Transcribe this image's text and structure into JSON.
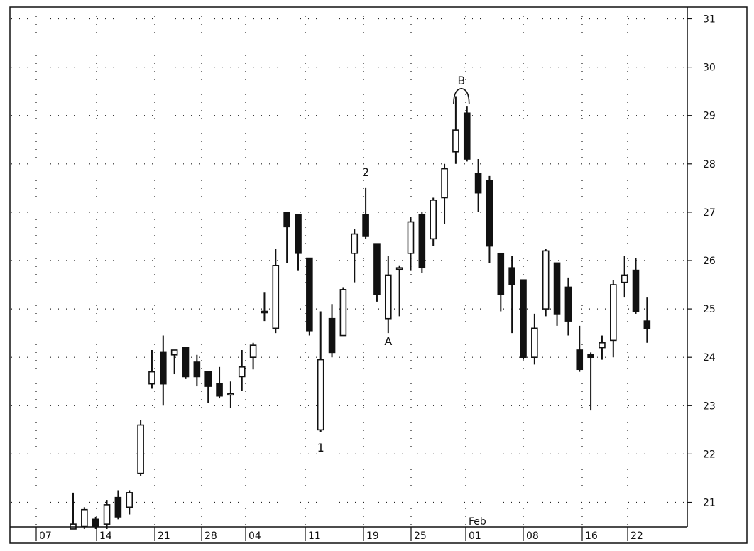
{
  "chart_data": {
    "type": "candlestick",
    "title": "",
    "xlabel": "",
    "ylabel": "",
    "ylim": [
      20.5,
      31
    ],
    "y_ticks": [
      21,
      22,
      23,
      24,
      25,
      26,
      27,
      28,
      29,
      30,
      31
    ],
    "y_axis_position": "right",
    "grid": true,
    "x_tick_labels": [
      "07",
      "14",
      "21",
      "28",
      "04",
      "11",
      "19",
      "25",
      "01",
      "08",
      "16",
      "22"
    ],
    "x_month_label": "Feb",
    "candles": [
      {
        "o": 20.45,
        "h": 21.2,
        "l": 20.45,
        "c": 20.55
      },
      {
        "o": 20.5,
        "h": 20.9,
        "l": 20.45,
        "c": 20.85
      },
      {
        "o": 20.65,
        "h": 20.7,
        "l": 20.45,
        "c": 20.5
      },
      {
        "o": 20.55,
        "h": 21.05,
        "l": 20.45,
        "c": 20.95
      },
      {
        "o": 21.1,
        "h": 21.25,
        "l": 20.65,
        "c": 20.7
      },
      {
        "o": 20.9,
        "h": 21.25,
        "l": 20.75,
        "c": 21.2
      },
      {
        "o": 21.6,
        "h": 22.7,
        "l": 21.55,
        "c": 22.6
      },
      {
        "o": 23.45,
        "h": 24.15,
        "l": 23.35,
        "c": 23.7
      },
      {
        "o": 24.1,
        "h": 24.45,
        "l": 23.0,
        "c": 23.45
      },
      {
        "o": 24.05,
        "h": 24.15,
        "l": 23.65,
        "c": 24.15
      },
      {
        "o": 24.2,
        "h": 24.2,
        "l": 23.55,
        "c": 23.6
      },
      {
        "o": 23.9,
        "h": 24.05,
        "l": 23.4,
        "c": 23.6
      },
      {
        "o": 23.7,
        "h": 23.7,
        "l": 23.05,
        "c": 23.4
      },
      {
        "o": 23.45,
        "h": 23.8,
        "l": 23.15,
        "c": 23.2
      },
      {
        "o": 23.25,
        "h": 23.5,
        "l": 22.95,
        "c": 23.25
      },
      {
        "o": 23.6,
        "h": 24.15,
        "l": 23.3,
        "c": 23.8
      },
      {
        "o": 24.0,
        "h": 24.3,
        "l": 23.75,
        "c": 24.25
      },
      {
        "o": 24.95,
        "h": 25.35,
        "l": 24.75,
        "c": 24.95
      },
      {
        "o": 24.6,
        "h": 26.25,
        "l": 24.5,
        "c": 25.9
      },
      {
        "o": 27.0,
        "h": 27.0,
        "l": 25.95,
        "c": 26.7
      },
      {
        "o": 26.95,
        "h": 26.95,
        "l": 25.8,
        "c": 26.15
      },
      {
        "o": 26.05,
        "h": 26.05,
        "l": 24.45,
        "c": 24.55
      },
      {
        "o": 22.5,
        "h": 24.95,
        "l": 22.45,
        "c": 23.95
      },
      {
        "o": 24.8,
        "h": 25.1,
        "l": 24.0,
        "c": 24.1
      },
      {
        "o": 24.45,
        "h": 25.45,
        "l": 24.45,
        "c": 25.4
      },
      {
        "o": 26.15,
        "h": 26.65,
        "l": 25.55,
        "c": 26.55
      },
      {
        "o": 26.95,
        "h": 27.5,
        "l": 26.45,
        "c": 26.5
      },
      {
        "o": 26.35,
        "h": 26.35,
        "l": 25.15,
        "c": 25.3
      },
      {
        "o": 24.8,
        "h": 26.1,
        "l": 24.5,
        "c": 25.7
      },
      {
        "o": 25.85,
        "h": 25.9,
        "l": 24.85,
        "c": 25.85
      },
      {
        "o": 26.15,
        "h": 26.9,
        "l": 25.8,
        "c": 26.8
      },
      {
        "o": 26.95,
        "h": 27.0,
        "l": 25.75,
        "c": 25.85
      },
      {
        "o": 26.45,
        "h": 27.3,
        "l": 26.3,
        "c": 27.25
      },
      {
        "o": 27.3,
        "h": 28.0,
        "l": 26.75,
        "c": 27.9
      },
      {
        "o": 28.25,
        "h": 29.4,
        "l": 28.0,
        "c": 28.7
      },
      {
        "o": 29.05,
        "h": 29.2,
        "l": 28.05,
        "c": 28.1
      },
      {
        "o": 27.8,
        "h": 28.1,
        "l": 27.0,
        "c": 27.4
      },
      {
        "o": 27.65,
        "h": 27.75,
        "l": 25.95,
        "c": 26.3
      },
      {
        "o": 26.15,
        "h": 26.15,
        "l": 24.95,
        "c": 25.3
      },
      {
        "o": 25.85,
        "h": 26.1,
        "l": 24.5,
        "c": 25.5
      },
      {
        "o": 25.6,
        "h": 25.6,
        "l": 23.95,
        "c": 24.0
      },
      {
        "o": 24.0,
        "h": 24.9,
        "l": 23.85,
        "c": 24.6
      },
      {
        "o": 25.0,
        "h": 26.25,
        "l": 24.85,
        "c": 26.2
      },
      {
        "o": 25.95,
        "h": 25.95,
        "l": 24.65,
        "c": 24.9
      },
      {
        "o": 25.45,
        "h": 25.65,
        "l": 24.45,
        "c": 24.75
      },
      {
        "o": 24.15,
        "h": 24.65,
        "l": 23.7,
        "c": 23.75
      },
      {
        "o": 24.05,
        "h": 24.1,
        "l": 22.9,
        "c": 24.0
      },
      {
        "o": 24.2,
        "h": 24.45,
        "l": 23.95,
        "c": 24.3
      },
      {
        "o": 24.35,
        "h": 25.6,
        "l": 24.0,
        "c": 25.5
      },
      {
        "o": 25.55,
        "h": 26.1,
        "l": 25.25,
        "c": 25.7
      },
      {
        "o": 25.8,
        "h": 26.05,
        "l": 24.9,
        "c": 24.95
      },
      {
        "o": 24.75,
        "h": 25.25,
        "l": 24.3,
        "c": 24.6
      }
    ],
    "annotations": [
      {
        "text": "1",
        "x_index": 22,
        "y": 22.05
      },
      {
        "text": "2",
        "x_index": 26,
        "y": 27.75
      },
      {
        "text": "A",
        "x_index": 28,
        "y": 24.25
      },
      {
        "text": "B",
        "x_index": 35,
        "y": 29.85,
        "bracket_from_index": 34,
        "bracket_to_index": 35
      }
    ]
  }
}
